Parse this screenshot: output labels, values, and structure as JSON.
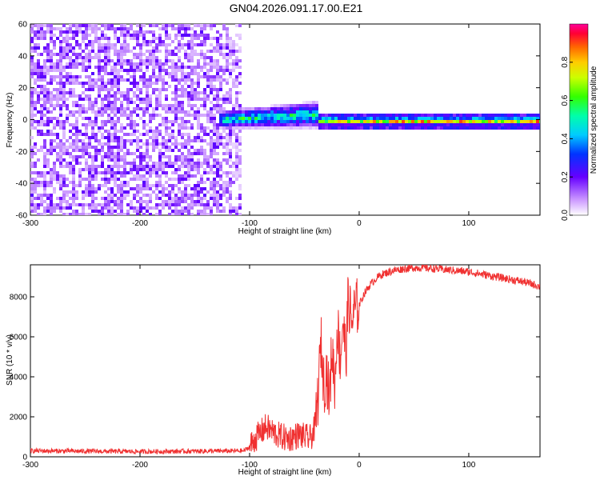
{
  "title": "GN04.2026.091.17.00.E21",
  "chart_data": [
    {
      "type": "heatmap",
      "xlabel": "Height of straight line (km)",
      "ylabel": "Frequency (Hz)",
      "xlim": [
        -300,
        165
      ],
      "ylim": [
        -60,
        60
      ],
      "xticks": [
        -300,
        -200,
        -100,
        0,
        100
      ],
      "yticks": [
        -60,
        -40,
        -20,
        0,
        20,
        40,
        60
      ],
      "colorbar": {
        "label": "Normalized spectral amplitude",
        "range": [
          0.0,
          1.0
        ],
        "ticks": [
          0.0,
          0.2,
          0.4,
          0.6,
          0.8
        ]
      },
      "description_regions": [
        {
          "x_range": [
            -300,
            -110
          ],
          "freq_range": [
            -60,
            60
          ],
          "amplitude": [
            0.0,
            0.15
          ],
          "pattern": "noise"
        },
        {
          "x_range": [
            -130,
            -40
          ],
          "freq_range": [
            -8,
            10
          ],
          "amplitude": [
            0.1,
            0.6
          ],
          "pattern": "band"
        },
        {
          "x_range": [
            -40,
            165
          ],
          "freq_range": [
            -3,
            3
          ],
          "amplitude": [
            0.4,
            1.0
          ],
          "pattern": "narrow band"
        }
      ]
    },
    {
      "type": "line",
      "xlabel": "Height of straight line (km)",
      "ylabel": "SNR (10 * v/v)",
      "xlim": [
        -300,
        165
      ],
      "ylim": [
        0,
        9600
      ],
      "xticks": [
        -300,
        -200,
        -100,
        0,
        100
      ],
      "yticks": [
        0,
        2000,
        4000,
        6000,
        8000
      ],
      "color": "#f03030",
      "series": [
        {
          "name": "SNR",
          "x": [
            -300,
            -250,
            -200,
            -150,
            -120,
            -105,
            -100,
            -95,
            -90,
            -85,
            -80,
            -75,
            -70,
            -65,
            -60,
            -55,
            -50,
            -45,
            -42,
            -40,
            -37,
            -35,
            -32,
            -30,
            -27,
            -25,
            -22,
            -20,
            -17,
            -15,
            -12,
            -10,
            -7,
            -5,
            -2,
            0,
            5,
            10,
            15,
            20,
            25,
            30,
            40,
            50,
            60,
            70,
            80,
            90,
            100,
            110,
            120,
            130,
            140,
            150,
            160,
            165
          ],
          "y": [
            300,
            280,
            260,
            280,
            290,
            300,
            500,
            900,
            1200,
            1500,
            1300,
            1100,
            1000,
            900,
            1000,
            1100,
            1000,
            900,
            1200,
            1600,
            3400,
            5800,
            3500,
            4400,
            2800,
            5500,
            3600,
            6700,
            4800,
            6900,
            5000,
            8000,
            6700,
            7200,
            7500,
            7600,
            8200,
            8600,
            8900,
            9100,
            9200,
            9300,
            9400,
            9450,
            9450,
            9400,
            9350,
            9300,
            9250,
            9150,
            9050,
            8950,
            8850,
            8750,
            8600,
            8500
          ]
        }
      ]
    }
  ]
}
